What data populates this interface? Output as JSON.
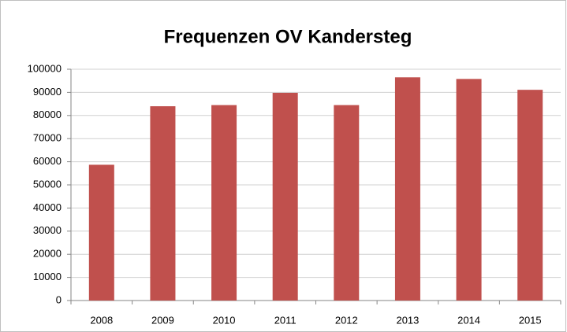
{
  "chart_data": {
    "type": "bar",
    "title": "Frequenzen OV Kandersteg",
    "categories": [
      "2008",
      "2009",
      "2010",
      "2011",
      "2012",
      "2013",
      "2014",
      "2015"
    ],
    "values": [
      58700,
      84000,
      84500,
      89800,
      84500,
      96500,
      95800,
      91100
    ],
    "color": "#c0504d",
    "ylim": [
      0,
      100000
    ],
    "yticks": [
      0,
      10000,
      20000,
      30000,
      40000,
      50000,
      60000,
      70000,
      80000,
      90000,
      100000
    ],
    "grid": true
  }
}
